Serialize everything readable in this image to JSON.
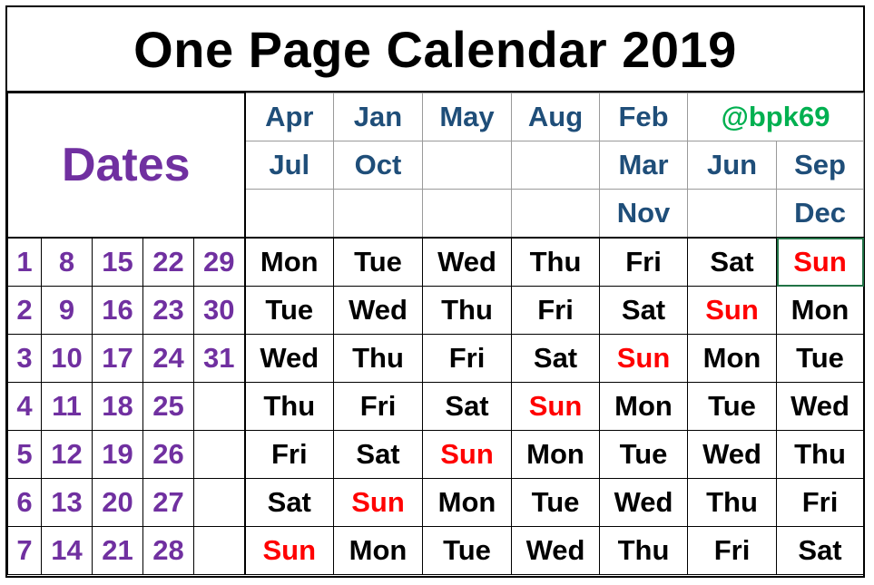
{
  "title": "One Page Calendar 2019",
  "dates_label": "Dates",
  "handle": "@bpk69",
  "month_header": [
    [
      "Apr",
      "Jan",
      "May",
      "Aug",
      "Feb",
      "",
      ""
    ],
    [
      "Jul",
      "Oct",
      "",
      "",
      "Mar",
      "Jun",
      "Sep"
    ],
    [
      "",
      "",
      "",
      "",
      "Nov",
      "",
      "Dec"
    ]
  ],
  "dates": [
    [
      "1",
      "8",
      "15",
      "22",
      "29"
    ],
    [
      "2",
      "9",
      "16",
      "23",
      "30"
    ],
    [
      "3",
      "10",
      "17",
      "24",
      "31"
    ],
    [
      "4",
      "11",
      "18",
      "25",
      ""
    ],
    [
      "5",
      "12",
      "19",
      "26",
      ""
    ],
    [
      "6",
      "13",
      "20",
      "27",
      ""
    ],
    [
      "7",
      "14",
      "21",
      "28",
      ""
    ]
  ],
  "weekdays": [
    [
      "Mon",
      "Tue",
      "Wed",
      "Thu",
      "Fri",
      "Sat",
      "Sun"
    ],
    [
      "Tue",
      "Wed",
      "Thu",
      "Fri",
      "Sat",
      "Sun",
      "Mon"
    ],
    [
      "Wed",
      "Thu",
      "Fri",
      "Sat",
      "Sun",
      "Mon",
      "Tue"
    ],
    [
      "Thu",
      "Fri",
      "Sat",
      "Sun",
      "Mon",
      "Tue",
      "Wed"
    ],
    [
      "Fri",
      "Sat",
      "Sun",
      "Mon",
      "Tue",
      "Wed",
      "Thu"
    ],
    [
      "Sat",
      "Sun",
      "Mon",
      "Tue",
      "Wed",
      "Thu",
      "Fri"
    ],
    [
      "Sun",
      "Mon",
      "Tue",
      "Wed",
      "Thu",
      "Fri",
      "Sat"
    ]
  ],
  "colors": {
    "title": "#000000",
    "dates": "#7030a0",
    "months": "#1f4e79",
    "sunday": "#ff0000",
    "weekday": "#000000",
    "handle": "#00b050",
    "selection": "#217346"
  }
}
